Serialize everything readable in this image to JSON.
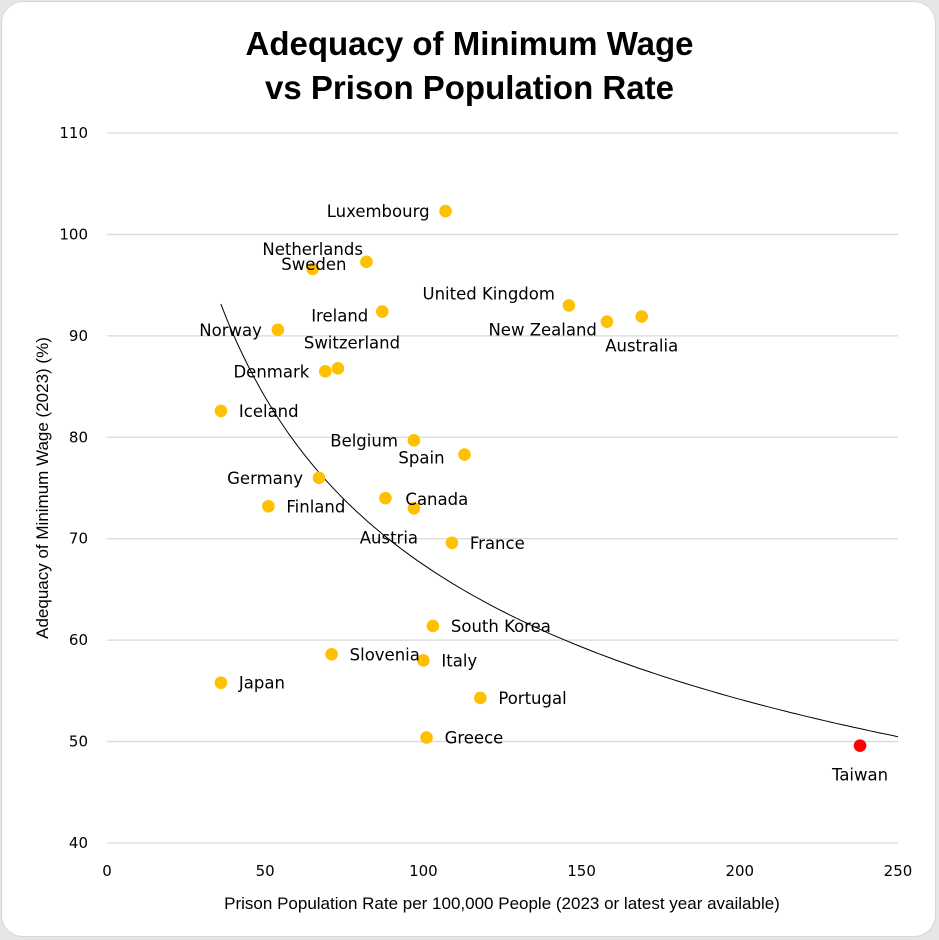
{
  "chart_data": {
    "type": "scatter",
    "title_lines": [
      "Adequacy of Minimum Wage",
      "vs Prison Population Rate"
    ],
    "xlabel": "Prison Population Rate per 100,000 People (2023 or latest year available)",
    "ylabel": "Adequacy of Minimum Wage (2023) (%)",
    "xlim": [
      0,
      250
    ],
    "ylim": [
      40,
      110
    ],
    "xticks": [
      0,
      50,
      100,
      150,
      200,
      250
    ],
    "yticks": [
      40,
      50,
      60,
      70,
      80,
      90,
      100,
      110
    ],
    "grid": "horizontal",
    "colors": {
      "point": "#ffc000",
      "highlight": "#ff0000",
      "trend": "#000000",
      "grid": "#d9d9d9"
    },
    "trendline": {
      "type": "power",
      "a": 289,
      "b": -0.316,
      "x_range": [
        36,
        250
      ]
    },
    "points": [
      {
        "name": "Luxembourg",
        "x": 107,
        "y": 102.3,
        "label_pos": "left"
      },
      {
        "name": "Sweden",
        "x": 82,
        "y": 97.3,
        "label_pos": "left-far"
      },
      {
        "name": "Netherlands",
        "x": 65,
        "y": 96.6,
        "label_pos": "below-right"
      },
      {
        "name": "Ireland",
        "x": 87,
        "y": 92.4,
        "label_pos": "left"
      },
      {
        "name": "United Kingdom",
        "x": 146,
        "y": 93.0,
        "label_pos": "left"
      },
      {
        "name": "New Zealand",
        "x": 158,
        "y": 91.4,
        "label_pos": "left-above"
      },
      {
        "name": "Australia",
        "x": 169,
        "y": 91.9,
        "label_pos": "below-left"
      },
      {
        "name": "Norway",
        "x": 54,
        "y": 90.6,
        "label_pos": "left"
      },
      {
        "name": "Switzerland",
        "x": 73,
        "y": 86.8,
        "label_pos": "above-right"
      },
      {
        "name": "Denmark",
        "x": 69,
        "y": 86.5,
        "label_pos": "left"
      },
      {
        "name": "Iceland",
        "x": 36,
        "y": 82.6,
        "label_pos": "right"
      },
      {
        "name": "Belgium",
        "x": 97,
        "y": 79.7,
        "label_pos": "left"
      },
      {
        "name": "Spain",
        "x": 113,
        "y": 78.3,
        "label_pos": "left-below"
      },
      {
        "name": "Germany",
        "x": 67,
        "y": 76.0,
        "label_pos": "left"
      },
      {
        "name": "Canada",
        "x": 88,
        "y": 74.0,
        "label_pos": "right"
      },
      {
        "name": "Finland",
        "x": 51,
        "y": 73.2,
        "label_pos": "right"
      },
      {
        "name": "Austria",
        "x": 97,
        "y": 73.0,
        "label_pos": "below-left"
      },
      {
        "name": "France",
        "x": 109,
        "y": 69.6,
        "label_pos": "right"
      },
      {
        "name": "South Korea",
        "x": 103,
        "y": 61.4,
        "label_pos": "right"
      },
      {
        "name": "Slovenia",
        "x": 71,
        "y": 58.6,
        "label_pos": "right"
      },
      {
        "name": "Italy",
        "x": 100,
        "y": 58.0,
        "label_pos": "right"
      },
      {
        "name": "Japan",
        "x": 36,
        "y": 55.8,
        "label_pos": "right"
      },
      {
        "name": "Portugal",
        "x": 118,
        "y": 54.3,
        "label_pos": "right"
      },
      {
        "name": "Greece",
        "x": 101,
        "y": 50.4,
        "label_pos": "right"
      },
      {
        "name": "Taiwan",
        "x": 238,
        "y": 49.6,
        "label_pos": "below",
        "highlight": true
      }
    ]
  }
}
